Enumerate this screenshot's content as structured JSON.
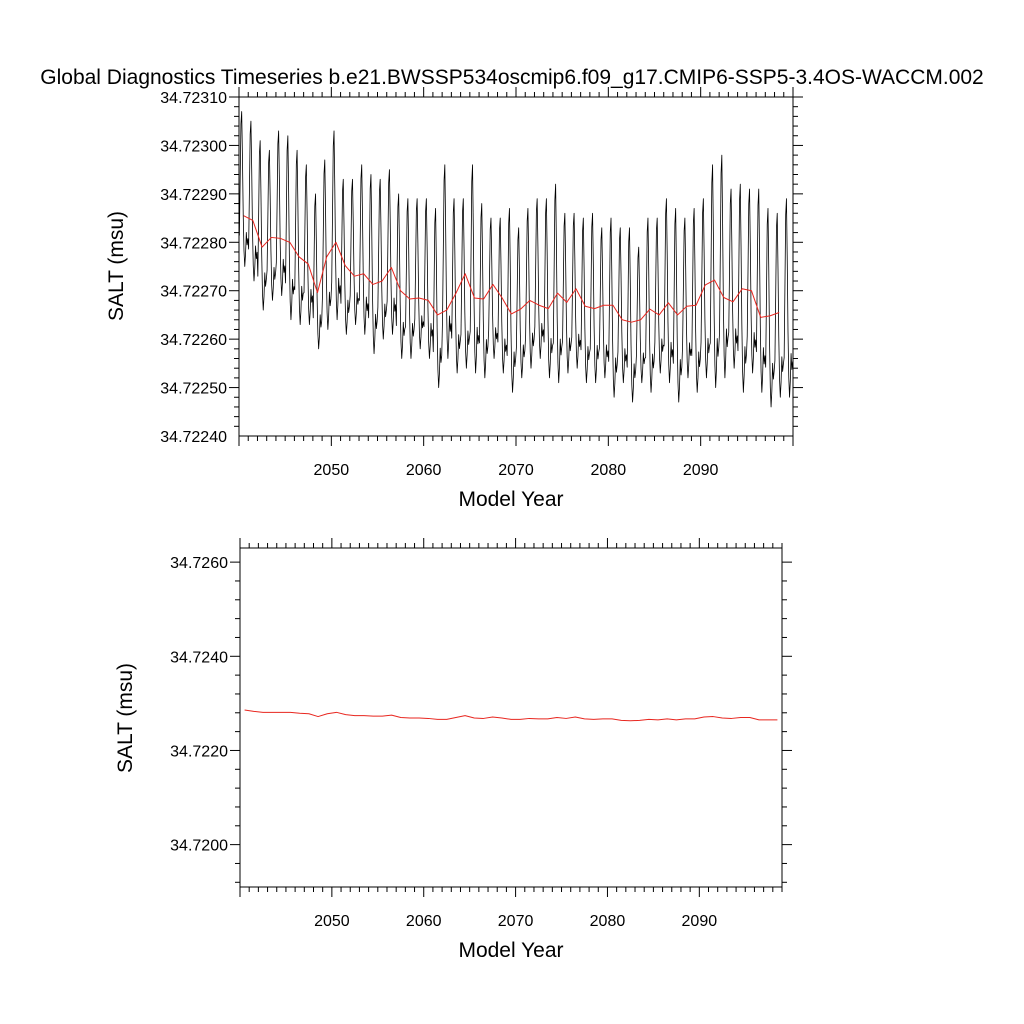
{
  "figure": {
    "title": "Global Diagnostics Timeseries b.e21.BWSSP534oscmip6.f09_g17.CMIP6-SSP5-3.4OS-WACCM.002"
  },
  "colors": {
    "monthly_line": "#000000",
    "annual_line": "#e8261f",
    "axes": "#000000",
    "background": "#ffffff"
  },
  "chart_data": [
    {
      "type": "line",
      "title": "",
      "xlabel": "Model Year",
      "ylabel": "SALT (msu)",
      "xlim": [
        2040.0,
        2100.0
      ],
      "ylim": [
        34.7224,
        34.7231
      ],
      "yticks": [
        "34.72240",
        "34.72250",
        "34.72260",
        "34.72270",
        "34.72280",
        "34.72290",
        "34.72300",
        "34.72310"
      ],
      "xticks": [
        "2050",
        "2060",
        "2070",
        "2080",
        "2090"
      ],
      "grid": false,
      "series": [
        {
          "resolution": "monthly",
          "color": "#000000",
          "start_year": 2040.0,
          "months": 720,
          "max_by_year": [
            34.72307,
            34.72305,
            34.72301,
            34.72299,
            34.72303,
            34.72302,
            34.72299,
            34.72296,
            34.7229,
            34.72297,
            34.72303,
            34.72293,
            34.72293,
            34.72296,
            34.72294,
            34.72293,
            34.72295,
            34.7229,
            34.72289,
            34.72289,
            34.72289,
            34.72287,
            34.72296,
            34.72289,
            34.72289,
            34.72296,
            34.72288,
            34.72285,
            34.72285,
            34.72287,
            34.72283,
            34.72287,
            34.72289,
            34.72289,
            34.72292,
            34.72286,
            34.72286,
            34.72285,
            34.72286,
            34.72283,
            34.72285,
            34.72283,
            34.72283,
            34.72279,
            34.72285,
            34.72285,
            34.72289,
            34.72287,
            34.72285,
            34.72287,
            34.72289,
            34.72296,
            34.72298,
            34.72291,
            34.72292,
            34.72291,
            34.72291,
            34.72287,
            34.72286,
            34.72289
          ],
          "min_by_year": [
            34.72275,
            34.72272,
            34.72266,
            34.72268,
            34.72269,
            34.72264,
            34.72263,
            34.72263,
            34.72258,
            34.72262,
            34.72264,
            34.72261,
            34.72263,
            34.72261,
            34.72257,
            34.7226,
            34.72261,
            34.72256,
            34.72256,
            34.72258,
            34.72256,
            34.7225,
            34.72256,
            34.72253,
            34.72254,
            34.72253,
            34.72252,
            34.72256,
            34.72253,
            34.72249,
            34.72252,
            34.72254,
            34.72256,
            34.72252,
            34.72251,
            34.72253,
            34.72254,
            34.72251,
            34.72251,
            34.72252,
            34.72248,
            34.72251,
            34.72247,
            34.72251,
            34.72249,
            34.72253,
            34.72251,
            34.72247,
            34.72252,
            34.72249,
            34.72252,
            34.7225,
            34.72252,
            34.72254,
            34.72249,
            34.72253,
            34.72249,
            34.72246,
            34.72248,
            34.72248
          ]
        },
        {
          "resolution": "annual",
          "color": "#e8261f",
          "x": [
            2040.5,
            2041.5,
            2042.5,
            2043.5,
            2044.5,
            2045.5,
            2046.5,
            2047.5,
            2048.5,
            2049.5,
            2050.5,
            2051.5,
            2052.5,
            2053.5,
            2054.5,
            2055.5,
            2056.5,
            2057.5,
            2058.5,
            2059.5,
            2060.5,
            2061.5,
            2062.5,
            2063.5,
            2064.5,
            2065.5,
            2066.5,
            2067.5,
            2068.5,
            2069.5,
            2070.5,
            2071.5,
            2072.5,
            2073.5,
            2074.5,
            2075.5,
            2076.5,
            2077.5,
            2078.5,
            2079.5,
            2080.5,
            2081.5,
            2082.5,
            2083.5,
            2084.5,
            2085.5,
            2086.5,
            2087.5,
            2088.5,
            2089.5,
            2090.5,
            2091.5,
            2092.5,
            2093.5,
            2094.5,
            2095.5,
            2096.5,
            2097.5,
            2098.5
          ],
          "values": [
            34.722855,
            34.722845,
            34.72279,
            34.72281,
            34.722808,
            34.7228,
            34.72277,
            34.722755,
            34.722696,
            34.72277,
            34.7228,
            34.722752,
            34.72273,
            34.722735,
            34.722713,
            34.72272,
            34.722748,
            34.7227,
            34.722683,
            34.722685,
            34.72268,
            34.72265,
            34.72266,
            34.722695,
            34.722735,
            34.722685,
            34.722683,
            34.722713,
            34.722685,
            34.722652,
            34.722662,
            34.72268,
            34.72267,
            34.722663,
            34.722695,
            34.722676,
            34.722704,
            34.722668,
            34.722663,
            34.72267,
            34.72267,
            34.72264,
            34.722635,
            34.72264,
            34.722662,
            34.72265,
            34.722675,
            34.72265,
            34.722668,
            34.72267,
            34.722712,
            34.722722,
            34.722686,
            34.722677,
            34.722704,
            34.7227,
            34.722645,
            34.722648,
            34.722655
          ]
        }
      ]
    },
    {
      "type": "line",
      "title": "",
      "xlabel": "Model Year",
      "ylabel": "SALT (msu)",
      "xlim": [
        2040.0,
        2099.0
      ],
      "ylim": [
        34.7191,
        34.7263
      ],
      "yticks": [
        "34.7200",
        "34.7220",
        "34.7240",
        "34.7260"
      ],
      "xticks": [
        "2050",
        "2060",
        "2070",
        "2080",
        "2090"
      ],
      "grid": false,
      "series": [
        {
          "resolution": "annual",
          "color": "#e8261f",
          "x": [
            2040.5,
            2041.5,
            2042.5,
            2043.5,
            2044.5,
            2045.5,
            2046.5,
            2047.5,
            2048.5,
            2049.5,
            2050.5,
            2051.5,
            2052.5,
            2053.5,
            2054.5,
            2055.5,
            2056.5,
            2057.5,
            2058.5,
            2059.5,
            2060.5,
            2061.5,
            2062.5,
            2063.5,
            2064.5,
            2065.5,
            2066.5,
            2067.5,
            2068.5,
            2069.5,
            2070.5,
            2071.5,
            2072.5,
            2073.5,
            2074.5,
            2075.5,
            2076.5,
            2077.5,
            2078.5,
            2079.5,
            2080.5,
            2081.5,
            2082.5,
            2083.5,
            2084.5,
            2085.5,
            2086.5,
            2087.5,
            2088.5,
            2089.5,
            2090.5,
            2091.5,
            2092.5,
            2093.5,
            2094.5,
            2095.5,
            2096.5,
            2097.5,
            2098.5
          ],
          "values": [
            34.72286,
            34.72283,
            34.72281,
            34.72281,
            34.72281,
            34.72281,
            34.72279,
            34.72278,
            34.72272,
            34.72278,
            34.72281,
            34.72276,
            34.72274,
            34.72274,
            34.72273,
            34.72273,
            34.72275,
            34.7227,
            34.72269,
            34.72269,
            34.72268,
            34.72266,
            34.72266,
            34.7227,
            34.72274,
            34.72269,
            34.72268,
            34.72271,
            34.72269,
            34.72266,
            34.72266,
            34.72268,
            34.72267,
            34.72267,
            34.7227,
            34.72268,
            34.72271,
            34.72267,
            34.72266,
            34.72267,
            34.72267,
            34.72264,
            34.72263,
            34.72264,
            34.72266,
            34.72265,
            34.72267,
            34.72265,
            34.72267,
            34.72267,
            34.72271,
            34.72272,
            34.72269,
            34.72268,
            34.7227,
            34.7227,
            34.72265,
            34.72265,
            34.72265
          ]
        }
      ]
    }
  ]
}
